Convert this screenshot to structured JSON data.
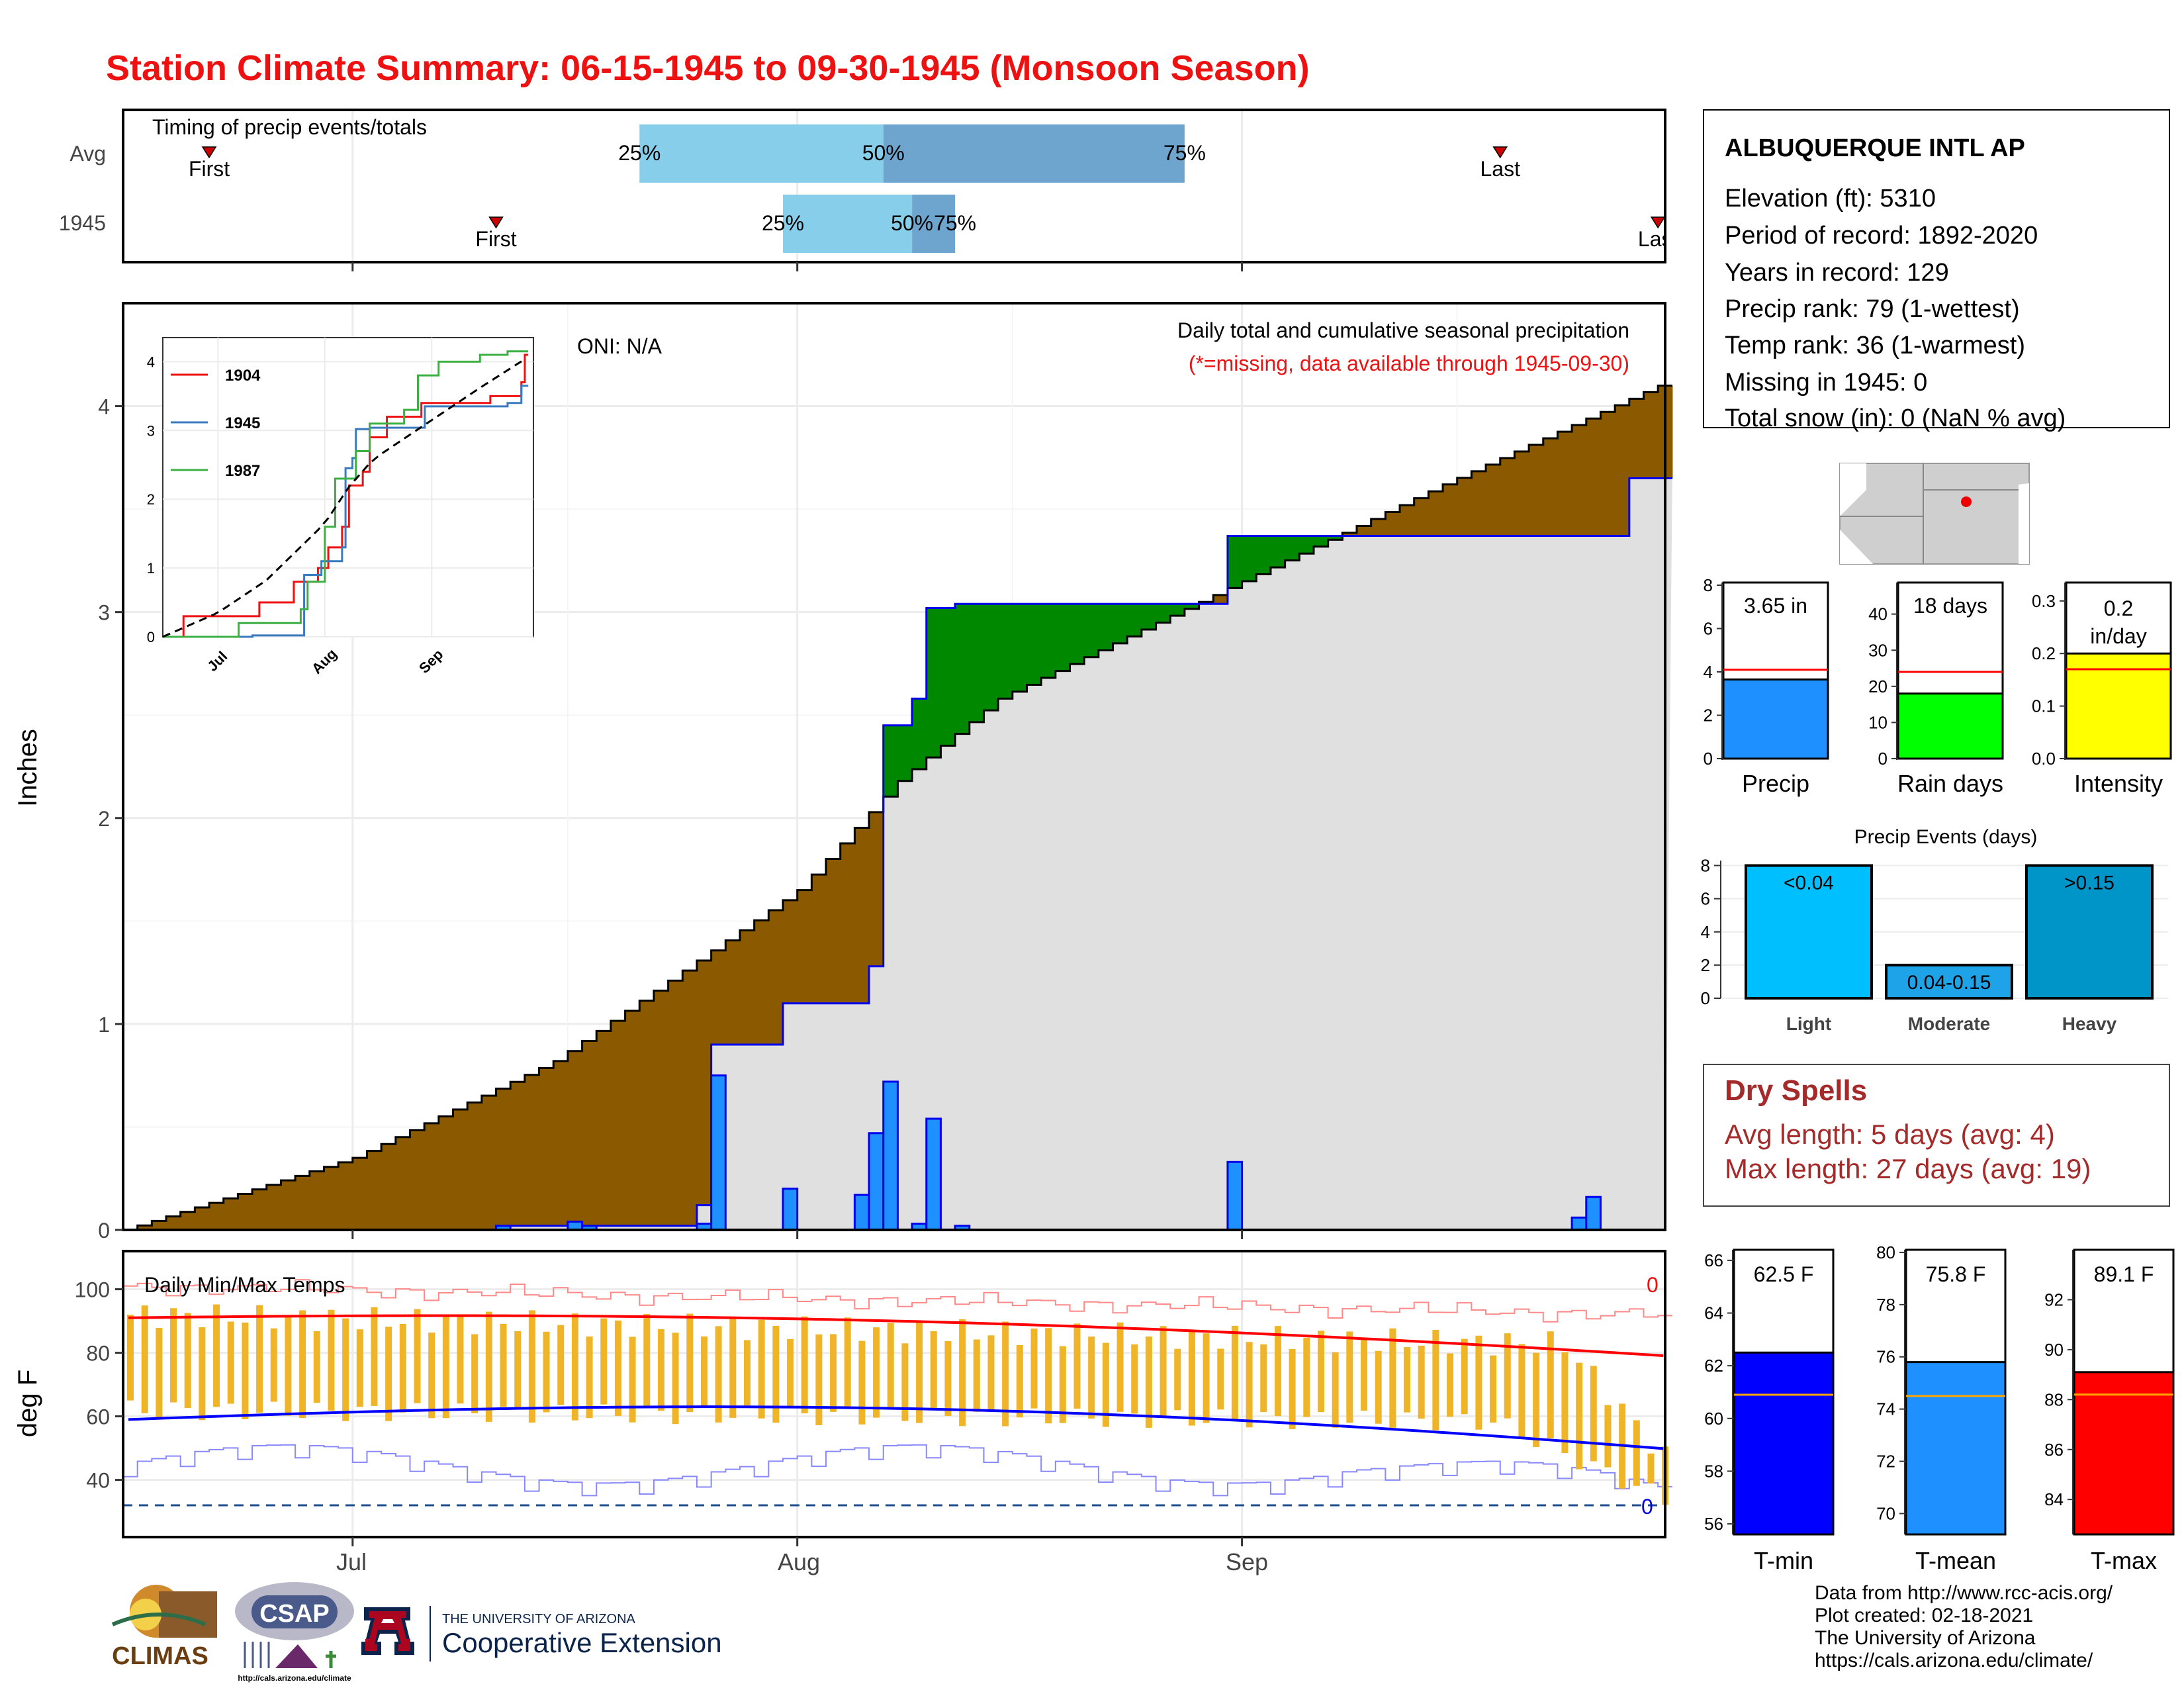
{
  "title": "Station Climate Summary: 06-15-1945 to 09-30-1945 (Monsoon Season)",
  "colors": {
    "title": "#ee1111",
    "brown": "#8b5a00",
    "green": "#008800",
    "gray_fill": "#e0e0e0",
    "precip_blue": "#1e90ff",
    "dark_blue": "#0000ee",
    "tmin": "#0000ff",
    "tmean": "#1e90ff",
    "tmax": "#ff0000",
    "light_blue": "#87ceeb",
    "mid_blue": "#6ea5cf",
    "yellow": "#ffff00",
    "green_bar": "#00ff00",
    "light_bar": "#00bfff",
    "moderate_bar": "#1ea3e8",
    "heavy_bar": "#0095c8",
    "temp_bar": "#f0b429",
    "dry_spell": "#a52a2a",
    "avg_line": "#ffa500"
  },
  "timing": {
    "title": "Timing of precip events/totals",
    "rows": [
      "Avg",
      "1945"
    ],
    "avg": {
      "first": "First",
      "last": "Last",
      "p25": "25%",
      "p50": "50%",
      "p75": "75%",
      "first_date": "2020-06-21",
      "p25_date": "2020-07-21",
      "p50_date": "2020-08-07",
      "p75_date": "2020-08-28",
      "last_date": "2020-09-19"
    },
    "y1945": {
      "first": "First",
      "last": "Last",
      "p25": "25%",
      "p50": "50%",
      "p75": "75%",
      "first_date": "2020-07-11",
      "p25_date": "2020-07-31",
      "p50_date": "2020-08-09",
      "p75_date": "2020-08-12",
      "last_date": "2020-09-30"
    }
  },
  "main_chart": {
    "ylabel": "Inches",
    "oni": "ONI: N/A",
    "annotation": "Daily total and cumulative seasonal precipitation",
    "missing_note": "(*=missing, data available through 1945-09-30)",
    "ylim": [
      0,
      4.5
    ],
    "yticks": [
      "0",
      "1",
      "2",
      "3",
      "4"
    ],
    "months": [
      "Jul",
      "Aug",
      "Sep"
    ]
  },
  "chart_data": {
    "type": "area",
    "x_start": "1945-06-15",
    "x_end": "1945-09-30",
    "cumulative_1945": [
      [
        "06-15",
        0.0
      ],
      [
        "07-11",
        0.02
      ],
      [
        "07-16",
        0.04
      ],
      [
        "07-17",
        0.02
      ],
      [
        "07-25",
        0.12
      ],
      [
        "07-26",
        0.9
      ],
      [
        "07-31",
        1.1
      ],
      [
        "08-06",
        1.28
      ],
      [
        "08-07",
        2.45
      ],
      [
        "08-09",
        2.58
      ],
      [
        "08-10",
        3.02
      ],
      [
        "08-12",
        3.04
      ],
      [
        "08-31",
        3.37
      ],
      [
        "09-24",
        3.37
      ],
      [
        "09-28",
        3.65
      ],
      [
        "09-30",
        3.65
      ]
    ],
    "daily_precip": [
      {
        "date": "07-11",
        "value": 0.02
      },
      {
        "date": "07-16",
        "value": 0.04
      },
      {
        "date": "07-17",
        "value": 0.02
      },
      {
        "date": "07-25",
        "value": 0.03
      },
      {
        "date": "07-26",
        "value": 0.75
      },
      {
        "date": "07-31",
        "value": 0.2
      },
      {
        "date": "08-05",
        "value": 0.17
      },
      {
        "date": "08-06",
        "value": 0.47
      },
      {
        "date": "08-07",
        "value": 0.72
      },
      {
        "date": "08-09",
        "value": 0.03
      },
      {
        "date": "08-10",
        "value": 0.54
      },
      {
        "date": "08-12",
        "value": 0.02
      },
      {
        "date": "08-31",
        "value": 0.33
      },
      {
        "date": "09-24",
        "value": 0.06
      },
      {
        "date": "09-25",
        "value": 0.16
      }
    ],
    "avg_cumulative": [
      [
        "06-15",
        0.0
      ],
      [
        "07-01",
        0.35
      ],
      [
        "07-15",
        0.82
      ],
      [
        "08-01",
        1.65
      ],
      [
        "08-08",
        2.18
      ],
      [
        "08-15",
        2.58
      ],
      [
        "09-01",
        3.15
      ],
      [
        "09-15",
        3.62
      ],
      [
        "09-30",
        4.1
      ]
    ],
    "inset": {
      "series": [
        {
          "name": "1904",
          "color": "#ee1111"
        },
        {
          "name": "1945",
          "color": "#3a7bbf"
        },
        {
          "name": "1987",
          "color": "#3cb043"
        }
      ],
      "yticks": [
        "0",
        "1",
        "2",
        "3",
        "4"
      ],
      "xticks": [
        "Jul",
        "Aug",
        "Sep"
      ]
    }
  },
  "temps": {
    "title": "Daily Min/Max Temps",
    "ylabel": "deg F",
    "yticks": [
      "40",
      "60",
      "80",
      "100"
    ],
    "count_hot": "0",
    "count_cold": "0",
    "months": [
      "Jul",
      "Aug",
      "Sep"
    ]
  },
  "station": {
    "name": "ALBUQUERQUE INTL AP",
    "lines": [
      "Elevation (ft): 5310",
      "Period of record: 1892-2020",
      "Years in record: 129",
      "Precip rank: 79 (1-wettest)",
      "Temp rank: 36 (1-warmest)",
      "Missing in 1945: 0",
      "Total snow (in): 0 (NaN % avg)"
    ]
  },
  "summary_bars": [
    {
      "label": "Precip",
      "value_text": "3.65 in",
      "value": 3.65,
      "avg": 4.1,
      "ymax": 8,
      "ticks": [
        "0",
        "2",
        "4",
        "6",
        "8"
      ],
      "color": "#1e90ff"
    },
    {
      "label": "Rain days",
      "value_text": "18 days",
      "value": 18,
      "avg": 24,
      "ymax": 48,
      "ticks": [
        "0",
        "10",
        "20",
        "30",
        "40"
      ],
      "color": "#00ff00"
    },
    {
      "label": "Intensity",
      "value_text": "0.2 in/day",
      "value": 0.2,
      "avg": 0.17,
      "ymax": 0.33,
      "ticks": [
        "0.0",
        "0.1",
        "0.2",
        "0.3"
      ],
      "color": "#ffff00"
    }
  ],
  "events": {
    "title": "Precip Events (days)",
    "ticks": [
      "0",
      "2",
      "4",
      "6",
      "8"
    ],
    "bars": [
      {
        "label": "Light",
        "value": 8,
        "text": "<0.04",
        "color": "#00bfff"
      },
      {
        "label": "Moderate",
        "value": 2,
        "text": "0.04-0.15",
        "color": "#1ea3e8"
      },
      {
        "label": "Heavy",
        "value": 8,
        "text": ">0.15",
        "color": "#0095c8"
      }
    ]
  },
  "dry_spells": {
    "title": "Dry Spells",
    "avg_length": "Avg length: 5 days (avg: 4)",
    "max_length": "Max length: 27 days (avg: 19)"
  },
  "temp_bars": [
    {
      "label": "T-min",
      "value_text": "62.5 F",
      "value": 62.5,
      "avg": 60.9,
      "ymin": 55.6,
      "ymax": 66.4,
      "ticks": [
        "56",
        "58",
        "60",
        "62",
        "64",
        "66"
      ],
      "color": "#0000ff"
    },
    {
      "label": "T-mean",
      "value_text": "75.8 F",
      "value": 75.8,
      "avg": 74.5,
      "ymin": 69.2,
      "ymax": 80.1,
      "ticks": [
        "70",
        "72",
        "74",
        "76",
        "78",
        "80"
      ],
      "color": "#1e90ff"
    },
    {
      "label": "T-max",
      "value_text": "89.1 F",
      "value": 89.1,
      "avg": 88.2,
      "ymin": 82.6,
      "ymax": 94.0,
      "ticks": [
        "84",
        "86",
        "88",
        "90",
        "92"
      ],
      "color": "#ff0000"
    }
  ],
  "footer": {
    "lines": [
      "Data from http://www.rcc-acis.org/",
      "Plot created: 02-18-2021",
      "The University of Arizona",
      "https://cals.arizona.edu/climate/"
    ],
    "logos": {
      "climas": "CLIMAS",
      "csap": "CSAP",
      "csap_url": "http://cals.arizona.edu/climate",
      "ua_line1": "THE UNIVERSITY OF ARIZONA",
      "ua_line2": "Cooperative Extension",
      "ua_letter": "A"
    }
  }
}
